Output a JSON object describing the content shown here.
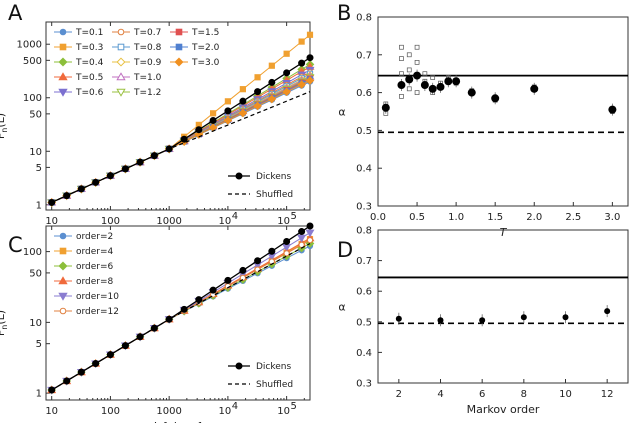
{
  "colors": {
    "T=0.1": "#5b8fd0",
    "T=0.3": "#f0a030",
    "T=0.4": "#8cbf3a",
    "T=0.5": "#f06a3c",
    "T=0.6": "#7c70d0",
    "T=0.7": "#e08040",
    "T=0.8": "#5b9ad0",
    "T=0.9": "#e8c040",
    "T=1.0": "#c070c0",
    "T=1.2": "#9ac040",
    "T=1.5": "#e05050",
    "T=2.0": "#5080d0",
    "T=3.0": "#f09020",
    "order=2": "#5b8fd0",
    "order=4": "#f0a030",
    "order=6": "#8cbf3a",
    "order=8": "#f06a3c",
    "order=10": "#8a7cd0",
    "order=12": "#e08040"
  },
  "panels": {
    "A": {
      "letter": "A"
    },
    "B": {
      "letter": "B"
    },
    "C": {
      "letter": "C"
    },
    "D": {
      "letter": "D"
    }
  },
  "chart_data": [
    {
      "panel": "A",
      "type": "line",
      "xscale": "log",
      "yscale": "log",
      "xlim": [
        8,
        250000
      ],
      "ylim": [
        0.8,
        2600
      ],
      "xlabel": "",
      "ylabel": "F_n(L)",
      "xticks": [
        "10",
        "100",
        "1000",
        "10^4",
        "10^5"
      ],
      "yticks": [
        "1",
        "5",
        "10",
        "50",
        "100",
        "500",
        "1000"
      ],
      "legend_position": "top-left",
      "x": [
        10,
        18,
        32,
        56,
        100,
        180,
        320,
        560,
        1000,
        1800,
        3200,
        5600,
        10000,
        18000,
        32000,
        56000,
        100000,
        180000,
        250000
      ],
      "series": [
        {
          "name": "T=0.1",
          "marker": "circle",
          "end": 200
        },
        {
          "name": "T=0.3",
          "marker": "square",
          "end": 1500
        },
        {
          "name": "T=0.4",
          "marker": "diamond",
          "end": 420
        },
        {
          "name": "T=0.5",
          "marker": "triangle-up",
          "end": 380
        },
        {
          "name": "T=0.6",
          "marker": "triangle-down",
          "end": 330
        },
        {
          "name": "T=0.7",
          "marker": "circle-open",
          "end": 300
        },
        {
          "name": "T=0.8",
          "marker": "square-open",
          "end": 280
        },
        {
          "name": "T=0.9",
          "marker": "diamond-open",
          "end": 260
        },
        {
          "name": "T=1.0",
          "marker": "triangle-open",
          "end": 250
        },
        {
          "name": "T=1.2",
          "marker": "triangle-down-open",
          "end": 240
        },
        {
          "name": "T=1.5",
          "marker": "square",
          "end": 230
        },
        {
          "name": "T=2.0",
          "marker": "square",
          "end": 220
        },
        {
          "name": "T=3.0",
          "marker": "diamond",
          "end": 210
        },
        {
          "name": "Dickens",
          "marker": "circle",
          "end": 560
        },
        {
          "name": "Shuffled",
          "marker": "dashed",
          "end": 130
        }
      ]
    },
    {
      "panel": "B",
      "type": "scatter",
      "xlim": [
        0,
        3.2
      ],
      "ylim": [
        0.3,
        0.8
      ],
      "xlabel": "T",
      "ylabel": "α",
      "xticks": [
        "0.0",
        "0.5",
        "1.0",
        "1.5",
        "2.0",
        "2.5",
        "3.0"
      ],
      "yticks": [
        "0.3",
        "0.4",
        "0.5",
        "0.6",
        "0.7",
        "0.8"
      ],
      "hline_solid": 0.645,
      "hline_dashed": 0.495,
      "points": [
        {
          "x": 0.1,
          "y": 0.56
        },
        {
          "x": 0.3,
          "y": 0.62
        },
        {
          "x": 0.4,
          "y": 0.635
        },
        {
          "x": 0.5,
          "y": 0.645
        },
        {
          "x": 0.6,
          "y": 0.62
        },
        {
          "x": 0.7,
          "y": 0.61
        },
        {
          "x": 0.8,
          "y": 0.615
        },
        {
          "x": 0.9,
          "y": 0.63
        },
        {
          "x": 1.0,
          "y": 0.63
        },
        {
          "x": 1.2,
          "y": 0.6
        },
        {
          "x": 1.5,
          "y": 0.585
        },
        {
          "x": 2.0,
          "y": 0.61
        },
        {
          "x": 3.0,
          "y": 0.555
        }
      ],
      "scatter_open": [
        {
          "x": 0.1,
          "y": 0.57
        },
        {
          "x": 0.1,
          "y": 0.545
        },
        {
          "x": 0.3,
          "y": 0.72
        },
        {
          "x": 0.3,
          "y": 0.69
        },
        {
          "x": 0.3,
          "y": 0.65
        },
        {
          "x": 0.3,
          "y": 0.59
        },
        {
          "x": 0.4,
          "y": 0.7
        },
        {
          "x": 0.4,
          "y": 0.66
        },
        {
          "x": 0.4,
          "y": 0.61
        },
        {
          "x": 0.5,
          "y": 0.72
        },
        {
          "x": 0.5,
          "y": 0.68
        },
        {
          "x": 0.5,
          "y": 0.6
        },
        {
          "x": 0.6,
          "y": 0.65
        },
        {
          "x": 0.6,
          "y": 0.63
        },
        {
          "x": 0.7,
          "y": 0.64
        },
        {
          "x": 0.7,
          "y": 0.6
        },
        {
          "x": 0.8,
          "y": 0.625
        },
        {
          "x": 0.9,
          "y": 0.64
        },
        {
          "x": 1.0,
          "y": 0.625
        },
        {
          "x": 1.2,
          "y": 0.605
        },
        {
          "x": 1.5,
          "y": 0.58
        },
        {
          "x": 2.0,
          "y": 0.615
        },
        {
          "x": 3.0,
          "y": 0.55
        }
      ]
    },
    {
      "panel": "C",
      "type": "line",
      "xscale": "log",
      "yscale": "log",
      "xlim": [
        8,
        250000
      ],
      "ylim": [
        0.8,
        230
      ],
      "xlabel": "L [chars]",
      "ylabel": "F_n(L)",
      "xticks": [
        "10",
        "100",
        "1000",
        "10^4",
        "10^5"
      ],
      "yticks": [
        "1",
        "5",
        "10",
        "50",
        "100"
      ],
      "legend_position": "top-left",
      "x": [
        10,
        18,
        32,
        56,
        100,
        180,
        320,
        560,
        1000,
        1800,
        3200,
        5600,
        10000,
        18000,
        32000,
        56000,
        100000,
        180000,
        250000
      ],
      "series": [
        {
          "name": "order=2",
          "marker": "circle",
          "end": 120
        },
        {
          "name": "order=4",
          "marker": "square",
          "end": 150
        },
        {
          "name": "order=6",
          "marker": "diamond",
          "end": 130
        },
        {
          "name": "order=8",
          "marker": "triangle-up",
          "end": 155
        },
        {
          "name": "order=10",
          "marker": "triangle-down",
          "end": 185
        },
        {
          "name": "order=12",
          "marker": "circle-open",
          "end": 145
        },
        {
          "name": "Dickens",
          "marker": "circle",
          "end": 230
        },
        {
          "name": "Shuffled",
          "marker": "dashed",
          "end": 130
        }
      ]
    },
    {
      "panel": "D",
      "type": "scatter",
      "xlim": [
        1,
        13
      ],
      "ylim": [
        0.3,
        0.8
      ],
      "xlabel": "Markov order",
      "ylabel": "α",
      "xticks": [
        "2",
        "4",
        "6",
        "8",
        "10",
        "12"
      ],
      "yticks": [
        "0.3",
        "0.4",
        "0.5",
        "0.6",
        "0.7",
        "0.8"
      ],
      "hline_solid": 0.645,
      "hline_dashed": 0.495,
      "points": [
        {
          "x": 2,
          "y": 0.51
        },
        {
          "x": 4,
          "y": 0.505
        },
        {
          "x": 6,
          "y": 0.505
        },
        {
          "x": 8,
          "y": 0.515
        },
        {
          "x": 10,
          "y": 0.515
        },
        {
          "x": 12,
          "y": 0.535
        }
      ]
    }
  ]
}
